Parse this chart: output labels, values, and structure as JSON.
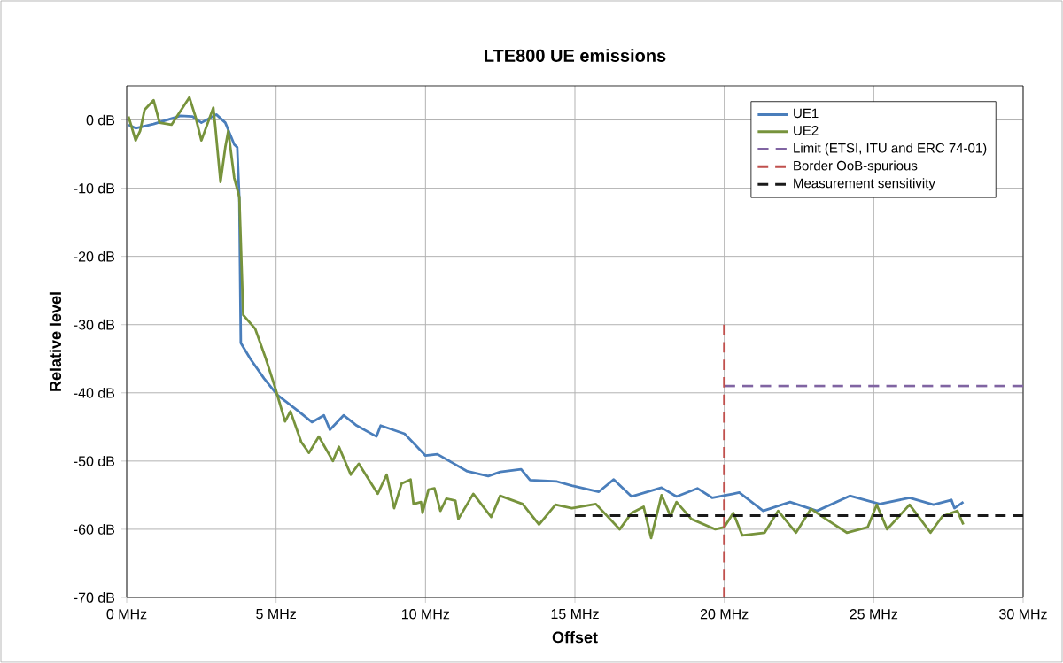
{
  "chart_data": {
    "type": "line",
    "title": "LTE800 UE emissions",
    "xlabel": "Offset",
    "ylabel": "Relative level",
    "xlim": [
      0,
      30
    ],
    "ylim": [
      -70,
      5
    ],
    "xticks": [
      {
        "value": 0,
        "label": "0 MHz"
      },
      {
        "value": 5,
        "label": "5 MHz"
      },
      {
        "value": 10,
        "label": "10 MHz"
      },
      {
        "value": 15,
        "label": "15 MHz"
      },
      {
        "value": 20,
        "label": "20 MHz"
      },
      {
        "value": 25,
        "label": "25 MHz"
      },
      {
        "value": 30,
        "label": "30 MHz"
      }
    ],
    "yticks": [
      {
        "value": -70,
        "label": "-70 dB"
      },
      {
        "value": -60,
        "label": "-60 dB"
      },
      {
        "value": -50,
        "label": "-50 dB"
      },
      {
        "value": -40,
        "label": "-40 dB"
      },
      {
        "value": -30,
        "label": "-30 dB"
      },
      {
        "value": -20,
        "label": "-20 dB"
      },
      {
        "value": -10,
        "label": "-10 dB"
      },
      {
        "value": 0,
        "label": "0 dB"
      }
    ],
    "grid": true,
    "legend": "top right",
    "marker": "none",
    "series": [
      {
        "name": "UE1",
        "color": "#4a7ebb",
        "line_style": "solid",
        "x": [
          0.06,
          0.3,
          0.9,
          1.8,
          2.2,
          2.5,
          3.0,
          3.3,
          3.6,
          3.7,
          3.77,
          3.82,
          4.15,
          4.6,
          5.04,
          5.75,
          6.2,
          6.6,
          6.8,
          7.26,
          7.7,
          8.36,
          8.5,
          9.3,
          10.0,
          10.4,
          11.4,
          12.1,
          12.5,
          13.2,
          13.5,
          14.4,
          14.9,
          15.8,
          16.3,
          16.9,
          17.9,
          18.4,
          19.1,
          19.6,
          20.3,
          20.5,
          21.3,
          22.2,
          23.1,
          24.2,
          25.2,
          26.2,
          27.0,
          27.6,
          27.7,
          28.0
        ],
        "values": [
          -0.7,
          -1.2,
          -0.6,
          0.6,
          0.5,
          -0.4,
          0.8,
          -0.4,
          -3.6,
          -4,
          -11.6,
          -32.7,
          -35.1,
          -37.9,
          -40.3,
          -42.7,
          -44.3,
          -43.3,
          -45.4,
          -43.3,
          -44.8,
          -46.4,
          -44.8,
          -46,
          -49.2,
          -49,
          -51.5,
          -52.2,
          -51.6,
          -51.2,
          -52.8,
          -53,
          -53.6,
          -54.5,
          -52.7,
          -55.2,
          -53.9,
          -55.2,
          -54,
          -55.4,
          -54.8,
          -54.6,
          -57.3,
          -56,
          -57.3,
          -55.1,
          -56.3,
          -55.4,
          -56.4,
          -55.7,
          -56.9,
          -56
        ]
      },
      {
        "name": "UE2",
        "color": "#77933c",
        "line_style": "solid",
        "x": [
          0.06,
          0.3,
          0.45,
          0.6,
          0.9,
          1.1,
          1.5,
          2.1,
          2.3,
          2.5,
          2.9,
          2.96,
          3.14,
          3.3,
          3.4,
          3.6,
          3.77,
          3.9,
          4.3,
          4.65,
          4.9,
          5.0,
          5.3,
          5.48,
          5.84,
          6.1,
          6.43,
          6.9,
          7.1,
          7.5,
          7.77,
          8.4,
          8.7,
          8.95,
          9.2,
          9.5,
          9.6,
          9.85,
          9.9,
          10.1,
          10.3,
          10.5,
          10.7,
          11.0,
          11.1,
          11.6,
          12.2,
          12.5,
          13.25,
          13.8,
          14.35,
          14.9,
          15.7,
          16.5,
          16.9,
          17.3,
          17.55,
          17.9,
          18.2,
          18.4,
          18.9,
          19.7,
          20.0,
          20.3,
          20.6,
          21.35,
          21.8,
          22.4,
          22.9,
          23.4,
          24.1,
          24.8,
          25.1,
          25.45,
          26.2,
          26.9,
          27.3,
          27.8,
          28.0
        ],
        "values": [
          0.5,
          -3,
          -1.6,
          1.5,
          2.9,
          -0.4,
          -0.7,
          3.3,
          0.5,
          -3,
          1.8,
          -0.7,
          -9.1,
          -4,
          -1.6,
          -8.5,
          -11.3,
          -28.6,
          -30.6,
          -34.9,
          -38.3,
          -39.7,
          -44.2,
          -42.7,
          -47.2,
          -48.8,
          -46.4,
          -50,
          -47.9,
          -52,
          -50.4,
          -54.8,
          -52,
          -56.9,
          -53.3,
          -52.7,
          -56.3,
          -56,
          -57.6,
          -54.2,
          -54,
          -57.3,
          -55.5,
          -55.8,
          -58.5,
          -54.8,
          -58.2,
          -55.1,
          -56.3,
          -59.3,
          -56.4,
          -56.9,
          -56.3,
          -60,
          -57.6,
          -56.7,
          -61.3,
          -55,
          -58.1,
          -56,
          -58.5,
          -60,
          -59.7,
          -57.6,
          -60.9,
          -60.5,
          -57.3,
          -60.5,
          -57,
          -58.5,
          -60.5,
          -59.7,
          -56.4,
          -60,
          -56.4,
          -60.5,
          -58.1,
          -57.3,
          -59.3
        ]
      },
      {
        "name": "Limit (ETSI, ITU and ERC 74-01)",
        "color": "#8064a2",
        "line_style": "dashed",
        "x": [
          20,
          30
        ],
        "values": [
          -39,
          -39
        ]
      },
      {
        "name": "Border OoB-spurious",
        "color": "#c0504d",
        "line_style": "dashed",
        "x": [
          20,
          20
        ],
        "values": [
          -70,
          -30
        ]
      },
      {
        "name": "Measurement sensitivity",
        "color": "#1a1a1a",
        "line_style": "dashed",
        "x": [
          15,
          30
        ],
        "values": [
          -58,
          -58
        ]
      }
    ]
  }
}
